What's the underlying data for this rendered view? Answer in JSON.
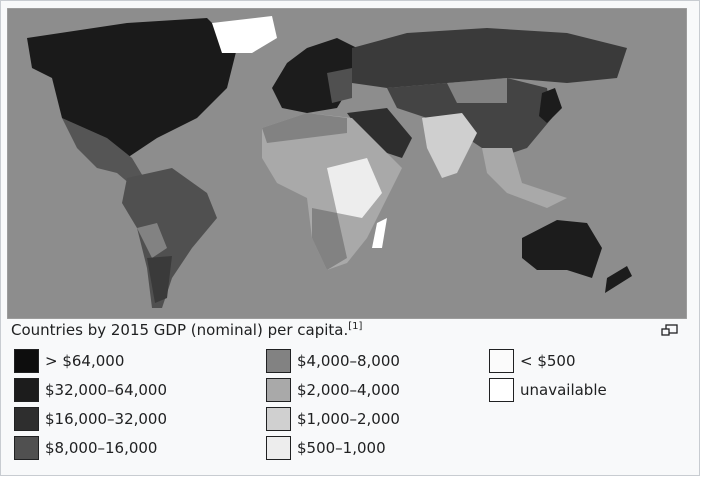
{
  "caption": {
    "text": "Countries by 2015 GDP (nominal) per capita.",
    "ref": "[1]"
  },
  "legend": {
    "items": [
      {
        "label": "> $64,000",
        "color": "#0d0d0d"
      },
      {
        "label": "$32,000–64,000",
        "color": "#1c1c1c"
      },
      {
        "label": "$16,000–32,000",
        "color": "#2e2e2e"
      },
      {
        "label": "$8,000–16,000",
        "color": "#505050"
      },
      {
        "label": "$4,000–8,000",
        "color": "#828282"
      },
      {
        "label": "$2,000–4,000",
        "color": "#a9a9a9"
      },
      {
        "label": "$1,000–2,000",
        "color": "#d0d0d0"
      },
      {
        "label": "$500–1,000",
        "color": "#ededed"
      },
      {
        "label": "< $500",
        "color": "#fbfbfb"
      },
      {
        "label": "unavailable",
        "color": "#ffffff"
      }
    ]
  }
}
